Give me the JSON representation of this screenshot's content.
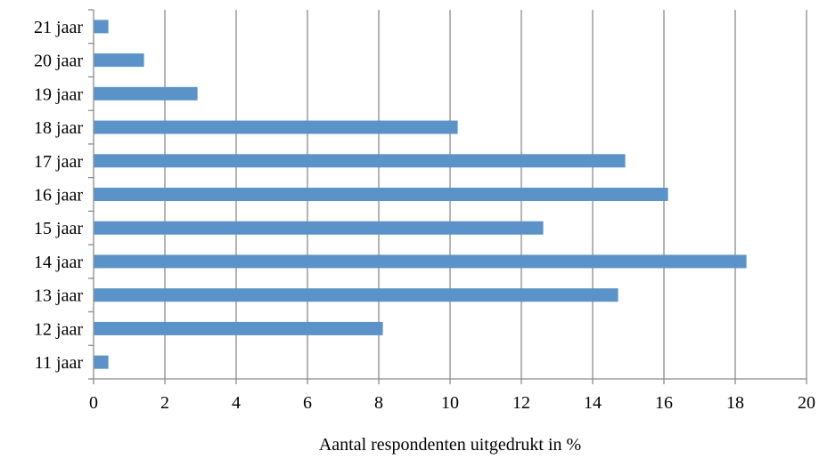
{
  "chart_data": {
    "type": "bar",
    "orientation": "horizontal",
    "categories": [
      "11 jaar",
      "12 jaar",
      "13 jaar",
      "14 jaar",
      "15 jaar",
      "16 jaar",
      "17 jaar",
      "18 jaar",
      "19 jaar",
      "20 jaar",
      "21 jaar"
    ],
    "values": [
      0.4,
      8.1,
      14.7,
      18.3,
      12.6,
      16.1,
      14.9,
      10.2,
      2.9,
      1.4,
      0.4
    ],
    "xlabel": "Aantal respondenten uitgedrukt in %",
    "ylabel": "",
    "xlim": [
      0,
      20
    ],
    "xticks": [
      "0",
      "2",
      "4",
      "6",
      "8",
      "10",
      "12",
      "14",
      "16",
      "18",
      "20"
    ],
    "grid": "vertical",
    "legend": "none",
    "bar_color": "#5b93c8",
    "grid_color": "#8c8c8c"
  }
}
